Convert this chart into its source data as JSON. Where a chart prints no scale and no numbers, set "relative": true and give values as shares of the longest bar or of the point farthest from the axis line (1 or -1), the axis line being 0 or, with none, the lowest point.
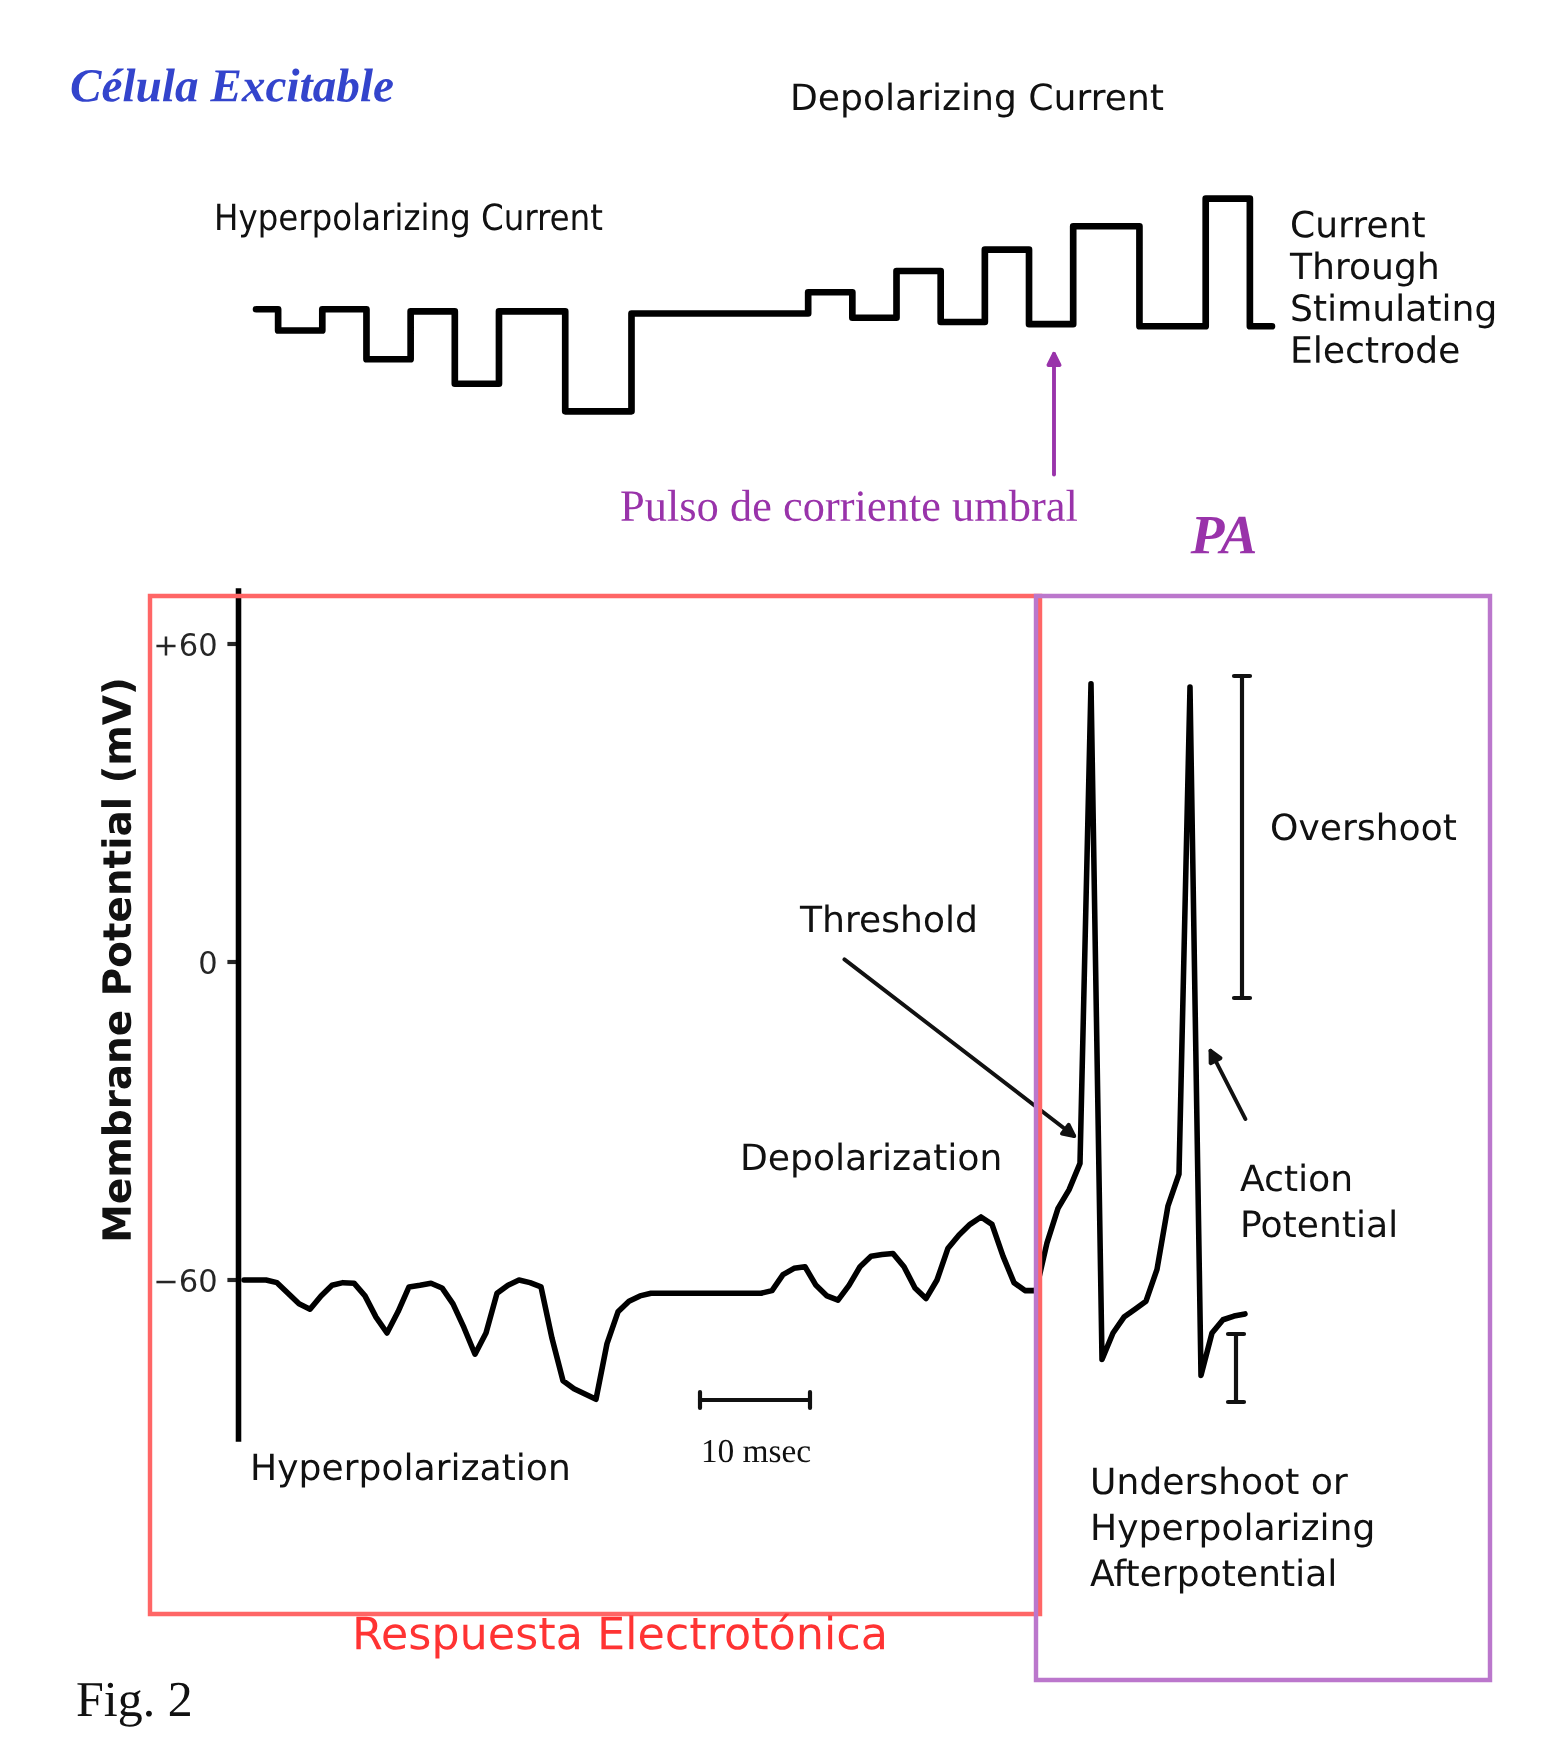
{
  "chart_data": [
    {
      "type": "step",
      "title": "Célula Excitable",
      "relative": true,
      "tick_labels": false,
      "categories": [
        null,
        null,
        null,
        null,
        null,
        null,
        null,
        null,
        null,
        null,
        null,
        null,
        null,
        null,
        null,
        null,
        null,
        null,
        null,
        null,
        null,
        null,
        null,
        null,
        null,
        null,
        null,
        null,
        null,
        null,
        null,
        null,
        null,
        null,
        null,
        null,
        null,
        null,
        null,
        null,
        null,
        null,
        null,
        null,
        null,
        null,
        null
      ],
      "series": [
        {
          "color": "#000000",
          "values": [
            0.48,
            0.38,
            0.38,
            0.48,
            0.48,
            0.245,
            0.245,
            0.47,
            0.47,
            0.13,
            0.13,
            0.47,
            0.47,
            0.47,
            0.0,
            0.0,
            0.0,
            0.46,
            0.46,
            0.46,
            0.46,
            0.46,
            0.46,
            0.46,
            0.46,
            0.56,
            0.56,
            0.44,
            0.44,
            0.66,
            0.66,
            0.42,
            0.42,
            0.76,
            0.76,
            0.41,
            0.41,
            0.87,
            0.87,
            0.87,
            0.4,
            0.4,
            0.4,
            1.0,
            1.0,
            0.4,
            0.4
          ]
        }
      ],
      "annotations": [
        "Hyperpolarizing Current",
        "Depolarizing Current",
        "Current\nThrough\nStimulating\nElectrode",
        "Pulso de corriente umbral",
        "Fig. 2"
      ]
    },
    {
      "type": "line",
      "ylabel": "Membrane Potential (mV)",
      "tick_labels": "y",
      "ylim": [
        -90,
        70
      ],
      "yticks": [
        {
          "value": 60,
          "label": "+60"
        },
        0,
        {
          "value": -60,
          "label": "−60"
        }
      ],
      "categories": [
        null,
        null,
        null,
        null,
        null,
        null,
        null,
        null,
        null,
        null,
        null,
        null,
        null,
        null,
        null,
        null,
        null,
        null,
        null,
        null,
        null,
        null,
        null,
        null,
        null,
        null,
        null,
        null,
        null,
        null,
        null,
        null,
        null,
        null,
        null,
        null,
        null,
        null,
        null,
        null,
        null,
        null,
        null,
        null,
        null,
        null,
        null,
        null,
        null,
        null,
        null,
        null,
        null,
        null,
        null,
        null,
        null,
        null,
        null,
        null,
        null,
        null,
        null,
        null,
        null,
        null,
        null,
        null,
        null,
        null,
        null,
        null,
        null,
        null,
        null,
        null,
        null,
        null,
        null,
        null,
        null,
        null,
        null,
        null,
        null,
        null,
        null,
        null,
        null,
        null,
        null,
        null
      ],
      "series": [
        {
          "color": "#000000",
          "values": [
            -60,
            -60,
            -60,
            -60.5,
            -62.5,
            -64.5,
            -65.5,
            -63,
            -61,
            -60.5,
            -60.6,
            -63,
            -67,
            -70,
            -66,
            -61.3,
            -61,
            -60.6,
            -61.5,
            -64.5,
            -69,
            -74,
            -70,
            -62.5,
            -61,
            -60,
            -60.5,
            -61.3,
            -71,
            -79,
            -80.5,
            -81.5,
            -82.5,
            -72,
            -66,
            -64,
            -63,
            -62.5,
            -62.5,
            -62.5,
            -62.5,
            -62.5,
            -62.5,
            -62.5,
            -62.5,
            -62.5,
            -62.5,
            -62.5,
            -62,
            -59,
            -57.8,
            -57.5,
            -61,
            -63,
            -63.8,
            -61,
            -57.5,
            -55.5,
            -55.2,
            -55,
            -57.5,
            -61.5,
            -63.5,
            -60,
            -54,
            -51.5,
            -49.5,
            -48.1,
            -49.5,
            -55.5,
            -60.5,
            -62,
            -62,
            -53,
            -46.5,
            -43,
            -38,
            52.5,
            -75,
            -70,
            -67,
            -65.5,
            -64,
            -58,
            -46,
            -40,
            51.9,
            -78,
            -70,
            -67.5,
            -66.8,
            -66.4
          ]
        }
      ],
      "annotations": [
        "Threshold",
        "Depolarization",
        "Hyperpolarization",
        "10 msec",
        "Action\nPotential",
        "Overshoot",
        "Undershoot or\nHyperpolarizing\nAfterpotential",
        "PA",
        "Respuesta Electrotónica"
      ]
    }
  ]
}
